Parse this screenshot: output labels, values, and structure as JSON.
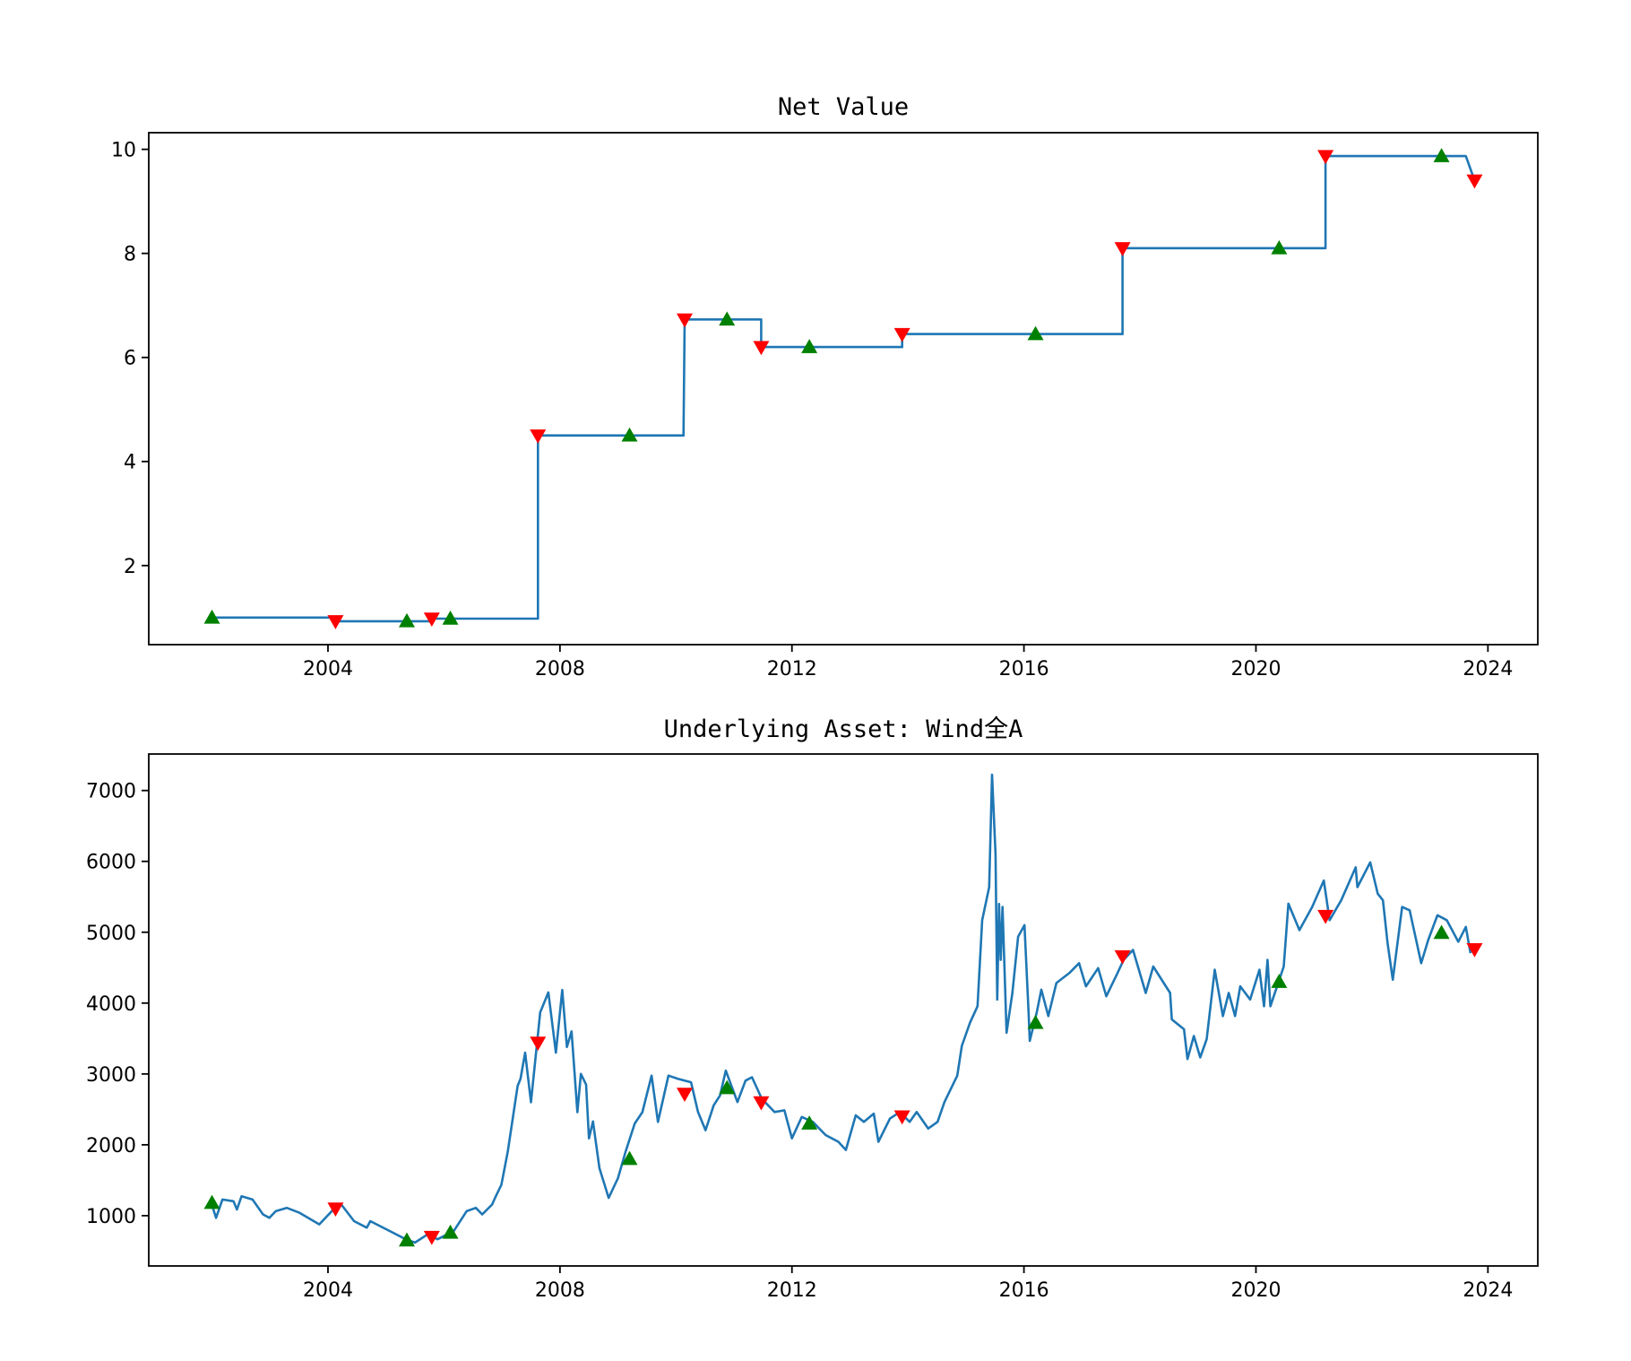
{
  "chart_data": [
    {
      "type": "line",
      "title": "Net Value",
      "xlabel": "",
      "ylabel": "",
      "xlim": [
        2000.91,
        2024.86
      ],
      "ylim": [
        0.48,
        10.32
      ],
      "xticks": [
        2004,
        2008,
        2012,
        2016,
        2020,
        2024
      ],
      "xtick_labels": [
        "2004",
        "2008",
        "2012",
        "2016",
        "2020",
        "2024"
      ],
      "yticks": [
        2,
        4,
        6,
        8,
        10
      ],
      "ytick_labels": [
        "2",
        "4",
        "6",
        "8",
        "10"
      ],
      "grid": false,
      "line_color": "#1f77b4",
      "buy_color": "#008000",
      "sell_color": "#ff0000",
      "series": [
        {
          "points": [
            [
              2002.0,
              1.0
            ],
            [
              2004.13,
              1.0
            ],
            [
              2004.13,
              0.93
            ],
            [
              2005.79,
              0.93
            ],
            [
              2005.79,
              0.98
            ],
            [
              2007.62,
              0.98
            ],
            [
              2007.62,
              4.5
            ],
            [
              2010.13,
              4.5
            ],
            [
              2010.15,
              6.73
            ],
            [
              2011.47,
              6.73
            ],
            [
              2011.47,
              6.2
            ],
            [
              2013.9,
              6.2
            ],
            [
              2013.9,
              6.45
            ],
            [
              2017.7,
              6.45
            ],
            [
              2017.7,
              8.1
            ],
            [
              2021.2,
              8.1
            ],
            [
              2021.2,
              9.87
            ],
            [
              2023.62,
              9.87
            ],
            [
              2023.77,
              9.4
            ]
          ]
        }
      ],
      "buy_markers": [
        [
          2002.0,
          1.0
        ],
        [
          2005.36,
          0.93
        ],
        [
          2006.11,
          0.98
        ],
        [
          2009.2,
          4.5
        ],
        [
          2010.88,
          6.73
        ],
        [
          2012.3,
          6.2
        ],
        [
          2016.2,
          6.45
        ],
        [
          2020.4,
          8.1
        ],
        [
          2023.2,
          9.87
        ]
      ],
      "sell_markers": [
        [
          2004.13,
          0.93
        ],
        [
          2005.79,
          0.98
        ],
        [
          2007.62,
          4.5
        ],
        [
          2010.15,
          6.73
        ],
        [
          2011.47,
          6.2
        ],
        [
          2013.9,
          6.45
        ],
        [
          2017.7,
          8.1
        ],
        [
          2021.2,
          9.87
        ],
        [
          2023.77,
          9.4
        ]
      ]
    },
    {
      "type": "line",
      "title": "Underlying Asset: Wind全A",
      "xlabel": "",
      "ylabel": "",
      "xlim": [
        2000.91,
        2024.86
      ],
      "ylim": [
        290,
        7515
      ],
      "xticks": [
        2004,
        2008,
        2012,
        2016,
        2020,
        2024
      ],
      "xtick_labels": [
        "2004",
        "2008",
        "2012",
        "2016",
        "2020",
        "2024"
      ],
      "yticks": [
        1000,
        2000,
        3000,
        4000,
        5000,
        6000,
        7000
      ],
      "ytick_labels": [
        "1000",
        "2000",
        "3000",
        "4000",
        "5000",
        "6000",
        "7000"
      ],
      "grid": false,
      "line_color": "#1f77b4",
      "buy_color": "#008000",
      "sell_color": "#ff0000",
      "series": [
        {
          "points": [
            [
              2002.0,
              1150
            ],
            [
              2002.07,
              970
            ],
            [
              2002.18,
              1227
            ],
            [
              2002.37,
              1203
            ],
            [
              2002.43,
              1087
            ],
            [
              2002.51,
              1273
            ],
            [
              2002.7,
              1227
            ],
            [
              2002.88,
              1017
            ],
            [
              2002.99,
              970
            ],
            [
              2003.1,
              1063
            ],
            [
              2003.29,
              1110
            ],
            [
              2003.51,
              1040
            ],
            [
              2003.85,
              877
            ],
            [
              2004.12,
              1110
            ],
            [
              2004.23,
              1157
            ],
            [
              2004.45,
              923
            ],
            [
              2004.67,
              830
            ],
            [
              2004.73,
              923
            ],
            [
              2005.12,
              760
            ],
            [
              2005.34,
              667
            ],
            [
              2005.5,
              620
            ],
            [
              2005.72,
              737
            ],
            [
              2005.89,
              667
            ],
            [
              2006.17,
              783
            ],
            [
              2006.39,
              1063
            ],
            [
              2006.55,
              1110
            ],
            [
              2006.66,
              1017
            ],
            [
              2006.83,
              1157
            ],
            [
              2006.88,
              1250
            ],
            [
              2006.99,
              1437
            ],
            [
              2007.1,
              1903
            ],
            [
              2007.27,
              2830
            ],
            [
              2007.32,
              2930
            ],
            [
              2007.4,
              3300
            ],
            [
              2007.5,
              2600
            ],
            [
              2007.66,
              3870
            ],
            [
              2007.8,
              4150
            ],
            [
              2007.93,
              3300
            ],
            [
              2008.04,
              4185
            ],
            [
              2008.12,
              3380
            ],
            [
              2008.2,
              3600
            ],
            [
              2008.3,
              2460
            ],
            [
              2008.36,
              3000
            ],
            [
              2008.45,
              2850
            ],
            [
              2008.5,
              2090
            ],
            [
              2008.57,
              2330
            ],
            [
              2008.68,
              1670
            ],
            [
              2008.84,
              1250
            ],
            [
              2009.0,
              1530
            ],
            [
              2009.13,
              1900
            ],
            [
              2009.29,
              2300
            ],
            [
              2009.42,
              2460
            ],
            [
              2009.58,
              2976
            ],
            [
              2009.69,
              2323
            ],
            [
              2009.87,
              2976
            ],
            [
              2010.04,
              2930
            ],
            [
              2010.26,
              2883
            ],
            [
              2010.38,
              2463
            ],
            [
              2010.51,
              2206
            ],
            [
              2010.65,
              2557
            ],
            [
              2010.76,
              2697
            ],
            [
              2010.86,
              3047
            ],
            [
              2011.06,
              2603
            ],
            [
              2011.2,
              2906
            ],
            [
              2011.31,
              2953
            ],
            [
              2011.48,
              2650
            ],
            [
              2011.7,
              2463
            ],
            [
              2011.87,
              2487
            ],
            [
              2012.0,
              2090
            ],
            [
              2012.17,
              2393
            ],
            [
              2012.36,
              2323
            ],
            [
              2012.58,
              2137
            ],
            [
              2012.8,
              2043
            ],
            [
              2012.93,
              1927
            ],
            [
              2013.1,
              2416
            ],
            [
              2013.24,
              2323
            ],
            [
              2013.41,
              2440
            ],
            [
              2013.49,
              2043
            ],
            [
              2013.69,
              2370
            ],
            [
              2013.86,
              2463
            ],
            [
              2014.03,
              2323
            ],
            [
              2014.15,
              2463
            ],
            [
              2014.35,
              2230
            ],
            [
              2014.51,
              2323
            ],
            [
              2014.63,
              2603
            ],
            [
              2014.85,
              2976
            ],
            [
              2014.93,
              3396
            ],
            [
              2015.07,
              3723
            ],
            [
              2015.2,
              3956
            ],
            [
              2015.28,
              5170
            ],
            [
              2015.4,
              5636
            ],
            [
              2015.45,
              7223
            ],
            [
              2015.51,
              6103
            ],
            [
              2015.54,
              4050
            ],
            [
              2015.57,
              5400
            ],
            [
              2015.6,
              4610
            ],
            [
              2015.63,
              5356
            ],
            [
              2015.7,
              3583
            ],
            [
              2015.8,
              4143
            ],
            [
              2015.9,
              4936
            ],
            [
              2016.01,
              5100
            ],
            [
              2016.08,
              3863
            ],
            [
              2016.1,
              3466
            ],
            [
              2016.22,
              3863
            ],
            [
              2016.3,
              4190
            ],
            [
              2016.42,
              3816
            ],
            [
              2016.56,
              4283
            ],
            [
              2016.78,
              4423
            ],
            [
              2016.95,
              4563
            ],
            [
              2017.07,
              4236
            ],
            [
              2017.28,
              4493
            ],
            [
              2017.42,
              4096
            ],
            [
              2017.6,
              4400
            ],
            [
              2017.72,
              4610
            ],
            [
              2017.88,
              4750
            ],
            [
              2018.1,
              4143
            ],
            [
              2018.23,
              4516
            ],
            [
              2018.52,
              4143
            ],
            [
              2018.55,
              3770
            ],
            [
              2018.76,
              3630
            ],
            [
              2018.82,
              3210
            ],
            [
              2018.93,
              3536
            ],
            [
              2019.04,
              3233
            ],
            [
              2019.15,
              3490
            ],
            [
              2019.29,
              4470
            ],
            [
              2019.43,
              3816
            ],
            [
              2019.53,
              4143
            ],
            [
              2019.64,
              3816
            ],
            [
              2019.73,
              4236
            ],
            [
              2019.9,
              4050
            ],
            [
              2020.06,
              4470
            ],
            [
              2020.14,
              3956
            ],
            [
              2020.2,
              4610
            ],
            [
              2020.25,
              3956
            ],
            [
              2020.48,
              4516
            ],
            [
              2020.56,
              5403
            ],
            [
              2020.75,
              5030
            ],
            [
              2020.97,
              5356
            ],
            [
              2021.17,
              5730
            ],
            [
              2021.27,
              5170
            ],
            [
              2021.47,
              5450
            ],
            [
              2021.72,
              5916
            ],
            [
              2021.75,
              5636
            ],
            [
              2021.97,
              5986
            ],
            [
              2022.1,
              5543
            ],
            [
              2022.19,
              5450
            ],
            [
              2022.27,
              4843
            ],
            [
              2022.36,
              4330
            ],
            [
              2022.52,
              5356
            ],
            [
              2022.65,
              5310
            ],
            [
              2022.85,
              4563
            ],
            [
              2022.97,
              4890
            ],
            [
              2023.13,
              5240
            ],
            [
              2023.29,
              5170
            ],
            [
              2023.49,
              4866
            ],
            [
              2023.62,
              5076
            ],
            [
              2023.7,
              4703
            ]
          ]
        }
      ],
      "buy_markers": [
        [
          2002.0,
          1180
        ],
        [
          2005.36,
          650
        ],
        [
          2006.11,
          760
        ],
        [
          2009.2,
          1800
        ],
        [
          2010.88,
          2800
        ],
        [
          2012.3,
          2300
        ],
        [
          2016.2,
          3720
        ],
        [
          2020.4,
          4300
        ],
        [
          2023.2,
          4990
        ]
      ],
      "sell_markers": [
        [
          2004.13,
          1100
        ],
        [
          2005.79,
          700
        ],
        [
          2007.62,
          3440
        ],
        [
          2010.15,
          2720
        ],
        [
          2011.47,
          2600
        ],
        [
          2013.9,
          2400
        ],
        [
          2017.7,
          4660
        ],
        [
          2021.2,
          5230
        ],
        [
          2023.77,
          4760
        ]
      ]
    }
  ]
}
